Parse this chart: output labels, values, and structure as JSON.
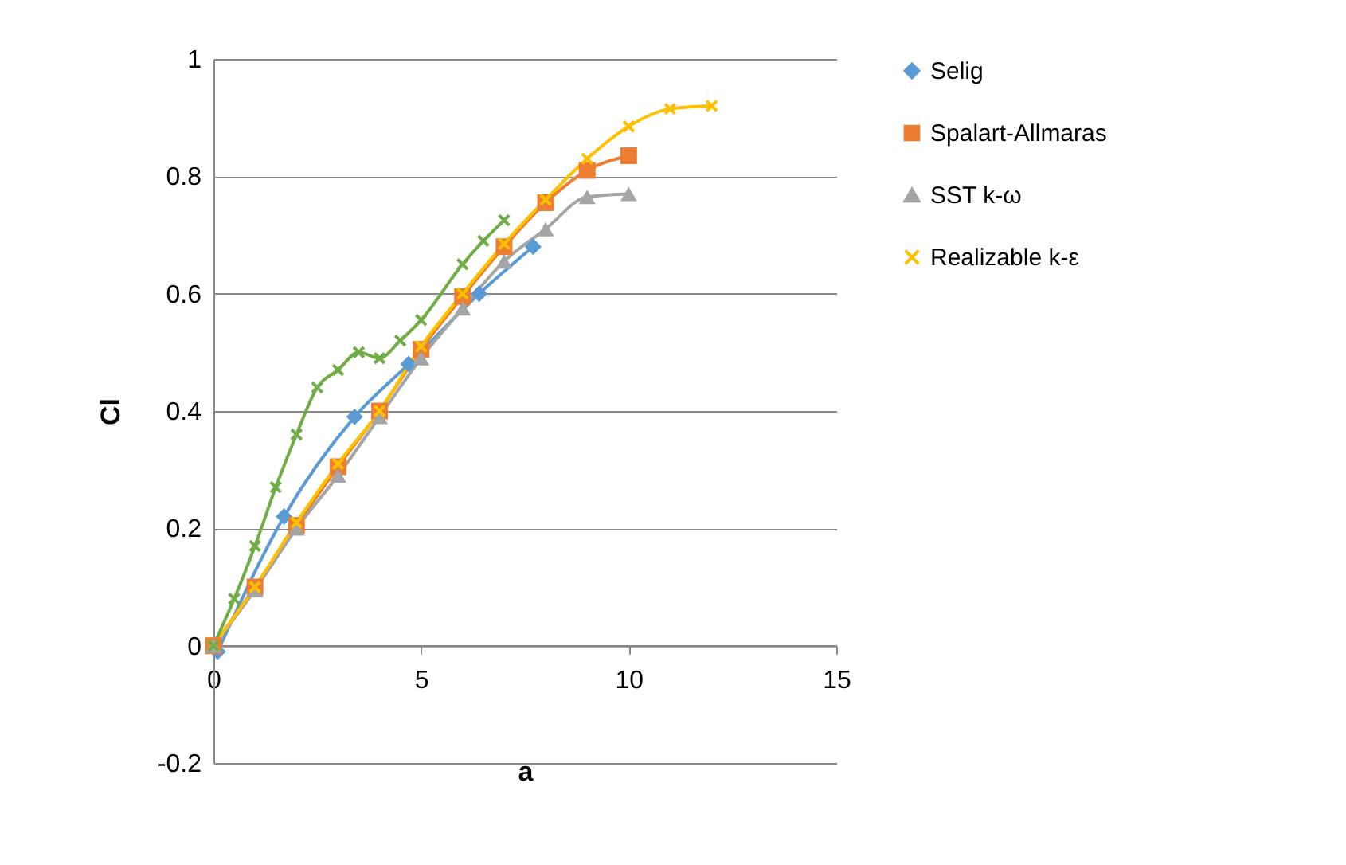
{
  "chart_data": {
    "type": "line",
    "xlabel": "a",
    "ylabel": "Cl",
    "xlim": [
      0,
      15
    ],
    "xticks": [
      0,
      5,
      10,
      15
    ],
    "ylim": [
      -0.2,
      1
    ],
    "yticks": [
      -0.2,
      0,
      0.2,
      0.4,
      0.6,
      0.8,
      1
    ],
    "grid": "y",
    "legend": "right",
    "series": [
      {
        "name": "Selig",
        "color": "#5b9bd5",
        "marker": "diamond",
        "x": [
          0.1,
          1.7,
          3.4,
          4.7,
          6.4,
          7.7
        ],
        "values": [
          -0.01,
          0.22,
          0.39,
          0.48,
          0.6,
          0.68
        ]
      },
      {
        "name": "Spalart-Allmaras",
        "color": "#ed7d31",
        "marker": "square",
        "x": [
          0,
          1,
          2,
          3,
          4,
          5,
          6,
          7,
          8,
          9,
          10
        ],
        "values": [
          0,
          0.1,
          0.205,
          0.305,
          0.4,
          0.505,
          0.595,
          0.68,
          0.755,
          0.81,
          0.835
        ]
      },
      {
        "name": "SST k-ω",
        "color": "#a5a5a5",
        "marker": "triangle",
        "x": [
          0,
          1,
          2,
          3,
          4,
          5,
          6,
          7,
          8,
          9,
          10
        ],
        "values": [
          0,
          0.095,
          0.2,
          0.29,
          0.39,
          0.49,
          0.575,
          0.655,
          0.71,
          0.765,
          0.77
        ]
      },
      {
        "name": "Realizable k-ε",
        "color": "#ffc000",
        "marker": "cross",
        "x": [
          0,
          1,
          2,
          3,
          4,
          5,
          6,
          7,
          8,
          9,
          10,
          11,
          12
        ],
        "values": [
          0,
          0.1,
          0.21,
          0.31,
          0.4,
          0.51,
          0.6,
          0.685,
          0.76,
          0.83,
          0.885,
          0.915,
          0.92
        ]
      },
      {
        "color": "#70ad47",
        "marker": "cross",
        "x": [
          0,
          0.5,
          1,
          1.5,
          2,
          2.5,
          3,
          3.5,
          4,
          4.5,
          5,
          6,
          6.5,
          7
        ],
        "values": [
          0,
          0.08,
          0.17,
          0.27,
          0.36,
          0.44,
          0.47,
          0.5,
          0.49,
          0.52,
          0.555,
          0.65,
          0.69,
          0.725
        ]
      }
    ]
  }
}
